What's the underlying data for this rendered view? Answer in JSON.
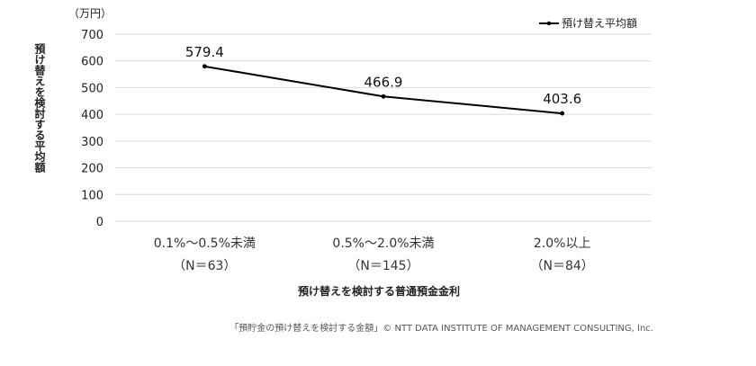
{
  "chart_data": {
    "type": "line",
    "unit_label": "（万円）",
    "ylabel": "預け替えを検討する平均額",
    "xlabel": "預け替えを検討する普通預金金利",
    "ylim": [
      0,
      700
    ],
    "yticks": [
      0,
      100,
      200,
      300,
      400,
      500,
      600,
      700
    ],
    "grid": true,
    "legend_position": "top-right",
    "categories": [
      {
        "label": "0.1%～0.5%未満",
        "sublabel": "（N＝63）"
      },
      {
        "label": "0.5%～2.0%未満",
        "sublabel": "（N＝145）"
      },
      {
        "label": "2.0%以上",
        "sublabel": "（N＝84）"
      }
    ],
    "series": [
      {
        "name": "預け替え平均額",
        "values": [
          579.4,
          466.9,
          403.6
        ],
        "labels": [
          "579.4",
          "466.9",
          "403.6"
        ],
        "color": "#000000"
      }
    ]
  },
  "footer": "「預貯金の預け替えを検討する金額」© NTT DATA INSTITUTE OF MANAGEMENT CONSULTING, Inc."
}
